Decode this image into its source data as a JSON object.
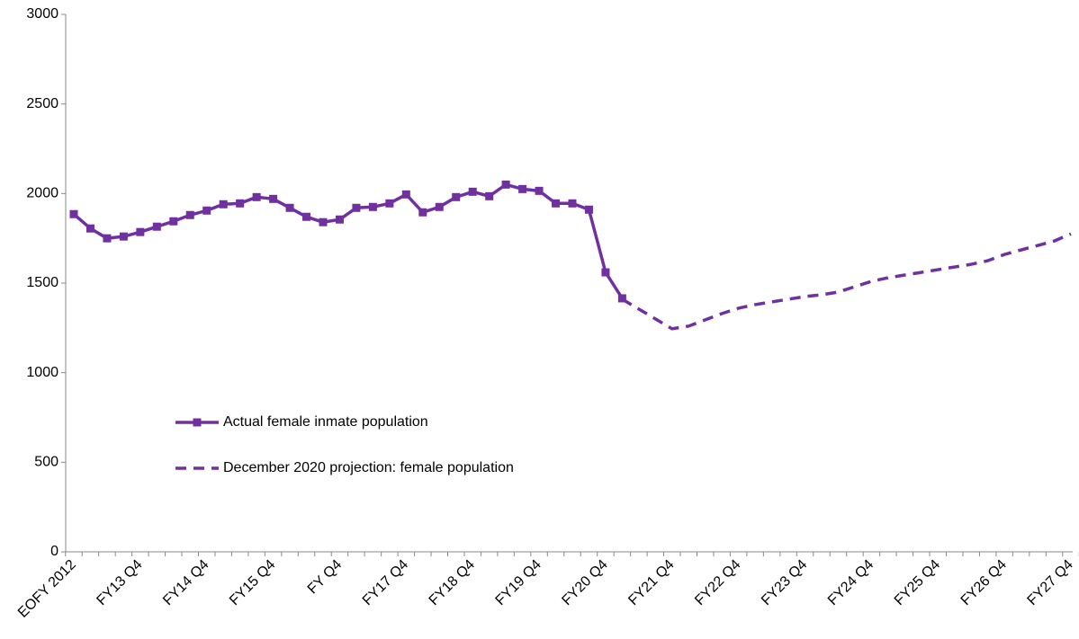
{
  "chart_data": {
    "type": "line",
    "categories": [
      "EOFY 2012",
      null,
      null,
      null,
      "FY13 Q4",
      null,
      null,
      null,
      "FY14 Q4",
      null,
      null,
      null,
      "FY15 Q4",
      null,
      null,
      null,
      "FY Q4",
      null,
      null,
      null,
      "FY17 Q4",
      null,
      null,
      null,
      "FY18 Q4",
      null,
      null,
      null,
      "FY19 Q4",
      null,
      null,
      null,
      "FY20 Q4",
      null,
      null,
      null,
      "FY21 Q4",
      null,
      null,
      null,
      "FY22 Q4",
      null,
      null,
      null,
      "FY23 Q4",
      null,
      null,
      null,
      "FY24 Q4",
      null,
      null,
      null,
      "FY25 Q4",
      null,
      null,
      null,
      "FY26 Q4",
      null,
      null,
      null,
      "FY27 Q4"
    ],
    "series": [
      {
        "name": "Actual female inmate population",
        "color": "#7030a0",
        "dashed": false,
        "markers": true,
        "values": [
          1885,
          1805,
          1750,
          1760,
          1785,
          1815,
          1845,
          1880,
          1905,
          1940,
          1945,
          1980,
          1970,
          1920,
          1870,
          1840,
          1855,
          1920,
          1925,
          1945,
          1995,
          1895,
          1925,
          1980,
          2010,
          1985,
          2050,
          2025,
          2015,
          1945,
          1945,
          1910,
          1560,
          1415,
          null,
          null,
          null,
          null,
          null,
          null,
          null,
          null,
          null,
          null,
          null,
          null,
          null,
          null,
          null,
          null,
          null,
          null,
          null,
          null,
          null,
          null,
          null,
          null,
          null,
          null,
          null
        ]
      },
      {
        "name": "December 2020 projection: female population",
        "color": "#7030a0",
        "dashed": true,
        "markers": false,
        "values": [
          null,
          null,
          null,
          null,
          null,
          null,
          null,
          null,
          null,
          null,
          null,
          null,
          null,
          null,
          null,
          null,
          null,
          null,
          null,
          null,
          null,
          null,
          null,
          null,
          null,
          null,
          null,
          null,
          null,
          null,
          null,
          null,
          null,
          1410,
          1355,
          1300,
          1245,
          1260,
          1295,
          1330,
          1360,
          1380,
          1395,
          1410,
          1425,
          1435,
          1450,
          1480,
          1510,
          1530,
          1545,
          1560,
          1575,
          1590,
          1605,
          1625,
          1660,
          1685,
          1710,
          1735,
          1775
        ]
      }
    ],
    "ylim": [
      0,
      3000
    ],
    "yticks": [
      0,
      500,
      1000,
      1500,
      2000,
      2500,
      3000
    ],
    "grid": false
  }
}
